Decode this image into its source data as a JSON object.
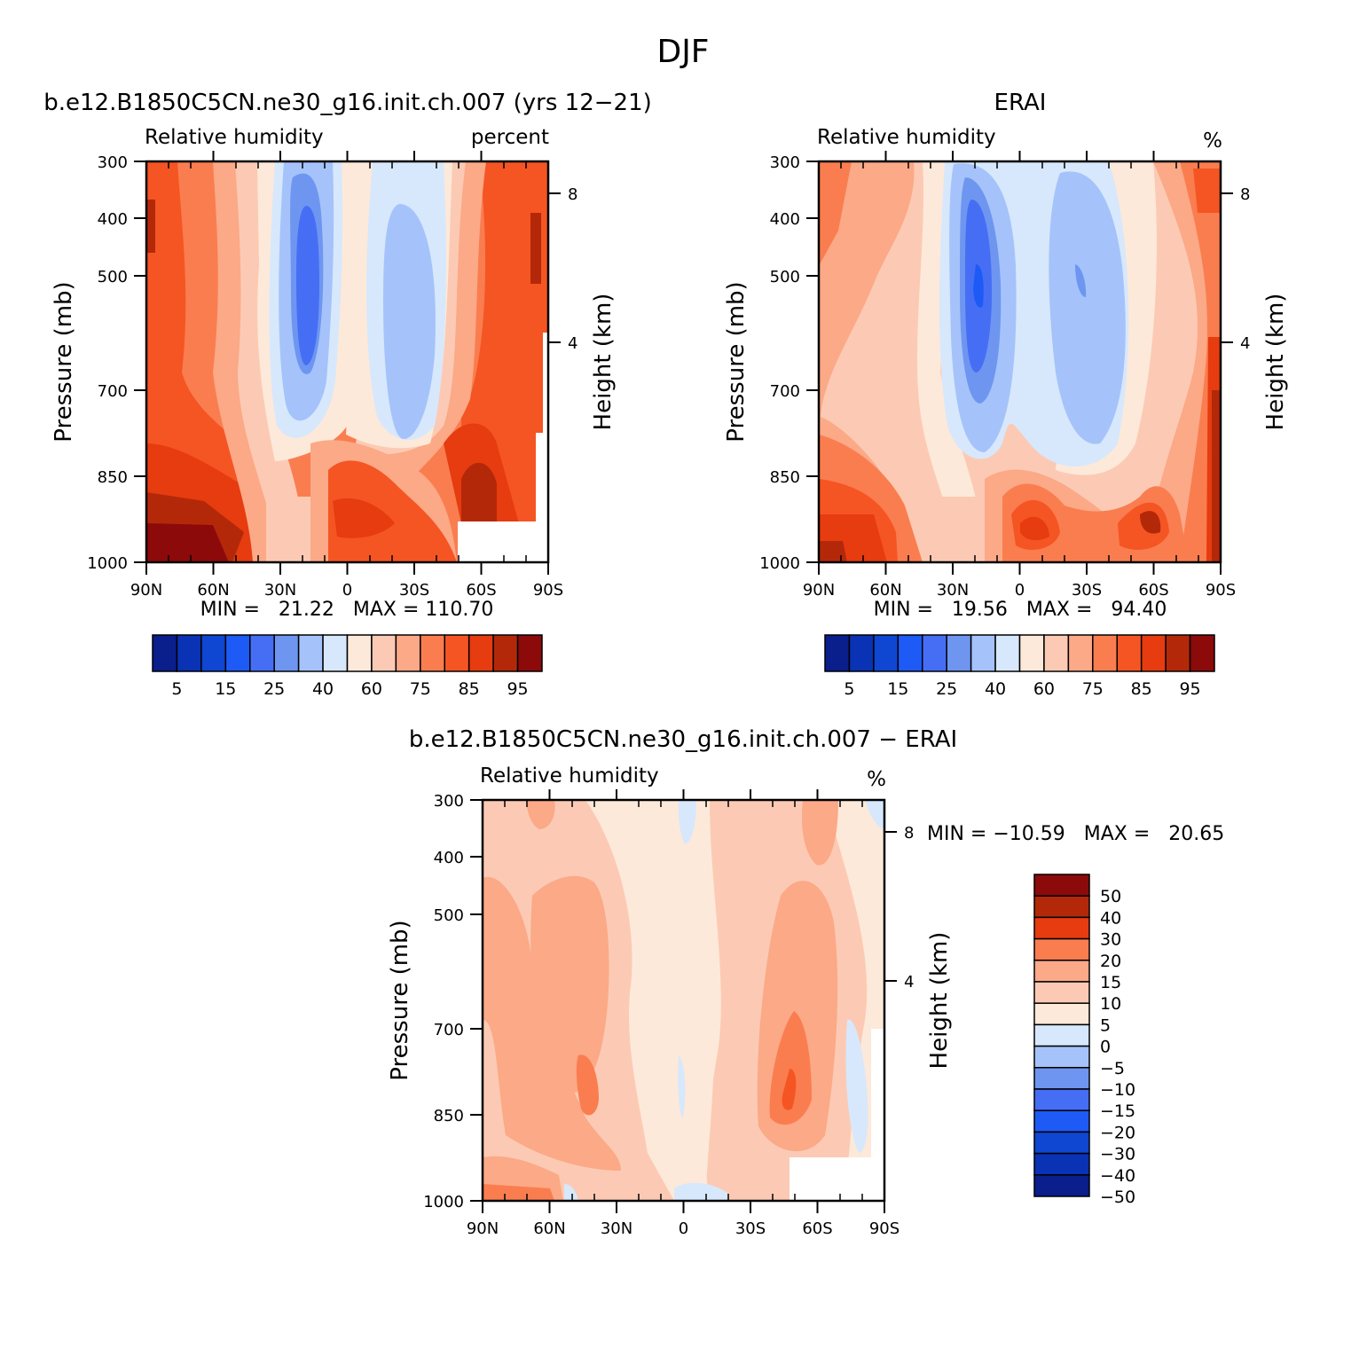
{
  "figure": {
    "title": "DJF"
  },
  "chart_data": [
    {
      "type": "heatmap",
      "panel_title": "b.e12.B1850C5CN.ne30_g16.init.ch.007 (yrs 12-21)",
      "left_label": "Relative humidity",
      "right_label": "percent",
      "ylabel": "Pressure (mb)",
      "y2label": "Height (km)",
      "x_ticks": [
        "90N",
        "60N",
        "30N",
        "0",
        "30S",
        "60S",
        "90S"
      ],
      "y_ticks": [
        "300",
        "400",
        "500",
        "700",
        "850",
        "1000"
      ],
      "y2_ticks": [
        "8",
        "4"
      ],
      "x_range": [
        90,
        -90
      ],
      "y_range": [
        300,
        1000
      ],
      "stats": "MIN =   21.22   MAX = 110.70",
      "colorbar": {
        "orientation": "horizontal",
        "labels": [
          "5",
          "15",
          "25",
          "40",
          "60",
          "75",
          "85",
          "95"
        ],
        "colors": [
          "#0a1e8c",
          "#0a32b4",
          "#0f46d2",
          "#1e5af5",
          "#466ef5",
          "#6e96f0",
          "#a5c3fa",
          "#d7e8fc",
          "#fde9d9",
          "#fccab4",
          "#fba987",
          "#fa7d50",
          "#f55523",
          "#e63c0f",
          "#b4280a",
          "#8c0a0a"
        ]
      }
    },
    {
      "type": "heatmap",
      "panel_title": "ERAI",
      "left_label": "Relative humidity",
      "right_label": "%",
      "ylabel": "Pressure (mb)",
      "y2label": "Height (km)",
      "x_ticks": [
        "90N",
        "60N",
        "30N",
        "0",
        "30S",
        "60S",
        "90S"
      ],
      "y_ticks": [
        "300",
        "400",
        "500",
        "700",
        "850",
        "1000"
      ],
      "y2_ticks": [
        "8",
        "4"
      ],
      "x_range": [
        90,
        -90
      ],
      "y_range": [
        300,
        1000
      ],
      "stats": "MIN =   19.56   MAX =   94.40",
      "colorbar": {
        "orientation": "horizontal",
        "labels": [
          "5",
          "15",
          "25",
          "40",
          "60",
          "75",
          "85",
          "95"
        ],
        "colors": [
          "#0a1e8c",
          "#0a32b4",
          "#0f46d2",
          "#1e5af5",
          "#466ef5",
          "#6e96f0",
          "#a5c3fa",
          "#d7e8fc",
          "#fde9d9",
          "#fccab4",
          "#fba987",
          "#fa7d50",
          "#f55523",
          "#e63c0f",
          "#b4280a",
          "#8c0a0a"
        ]
      }
    },
    {
      "type": "heatmap",
      "panel_title": "b.e12.B1850C5CN.ne30_g16.init.ch.007 - ERAI",
      "left_label": "Relative humidity",
      "right_label": "%",
      "ylabel": "Pressure (mb)",
      "y2label": "Height (km)",
      "x_ticks": [
        "90N",
        "60N",
        "30N",
        "0",
        "30S",
        "60S",
        "90S"
      ],
      "y_ticks": [
        "300",
        "400",
        "500",
        "700",
        "850",
        "1000"
      ],
      "y2_ticks": [
        "8",
        "4"
      ],
      "x_range": [
        90,
        -90
      ],
      "y_range": [
        300,
        1000
      ],
      "stats": "MIN = -10.59   MAX =   20.65",
      "colorbar": {
        "orientation": "vertical",
        "labels": [
          "50",
          "40",
          "30",
          "20",
          "15",
          "10",
          "5",
          "0",
          "-5",
          "-10",
          "-15",
          "-20",
          "-30",
          "-40",
          "-50"
        ],
        "colors": [
          "#8c0a0a",
          "#b4280a",
          "#e63c0f",
          "#fa7d50",
          "#fba987",
          "#fccab4",
          "#fde9d9",
          "#d7e8fc",
          "#a5c3fa",
          "#6e96f0",
          "#466ef5",
          "#1e5af5",
          "#0f46d2",
          "#0a32b4",
          "#0a1e8c"
        ]
      }
    }
  ]
}
